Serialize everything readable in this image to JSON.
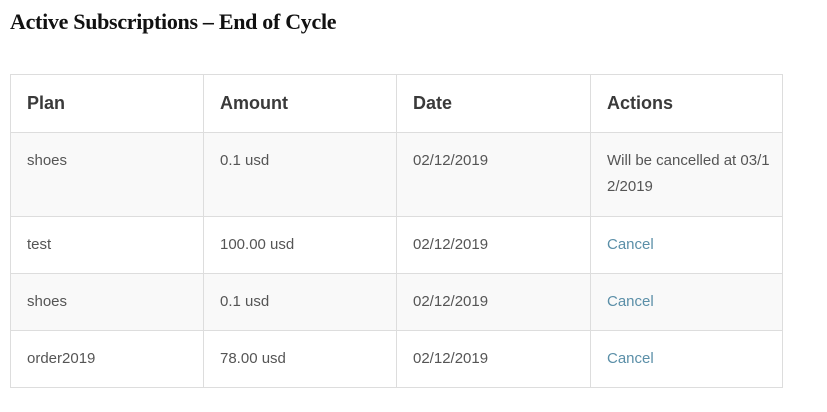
{
  "page": {
    "title": "Active Subscriptions – End of Cycle"
  },
  "table": {
    "headers": {
      "plan": "Plan",
      "amount": "Amount",
      "date": "Date",
      "actions": "Actions"
    },
    "rows": [
      {
        "plan": "shoes",
        "amount": "0.1 usd",
        "date": "02/12/2019",
        "action_text": "Will be cancelled at 03/12/2019"
      },
      {
        "plan": "test",
        "amount": "100.00 usd",
        "date": "02/12/2019",
        "action_link": "Cancel"
      },
      {
        "plan": "shoes",
        "amount": "0.1 usd",
        "date": "02/12/2019",
        "action_link": "Cancel"
      },
      {
        "plan": "order2019",
        "amount": "78.00 usd",
        "date": "02/12/2019",
        "action_link": "Cancel"
      }
    ]
  },
  "colors": {
    "link": "#5b8fa8",
    "stripe": "#f9f9f9",
    "border": "#dddddd"
  }
}
